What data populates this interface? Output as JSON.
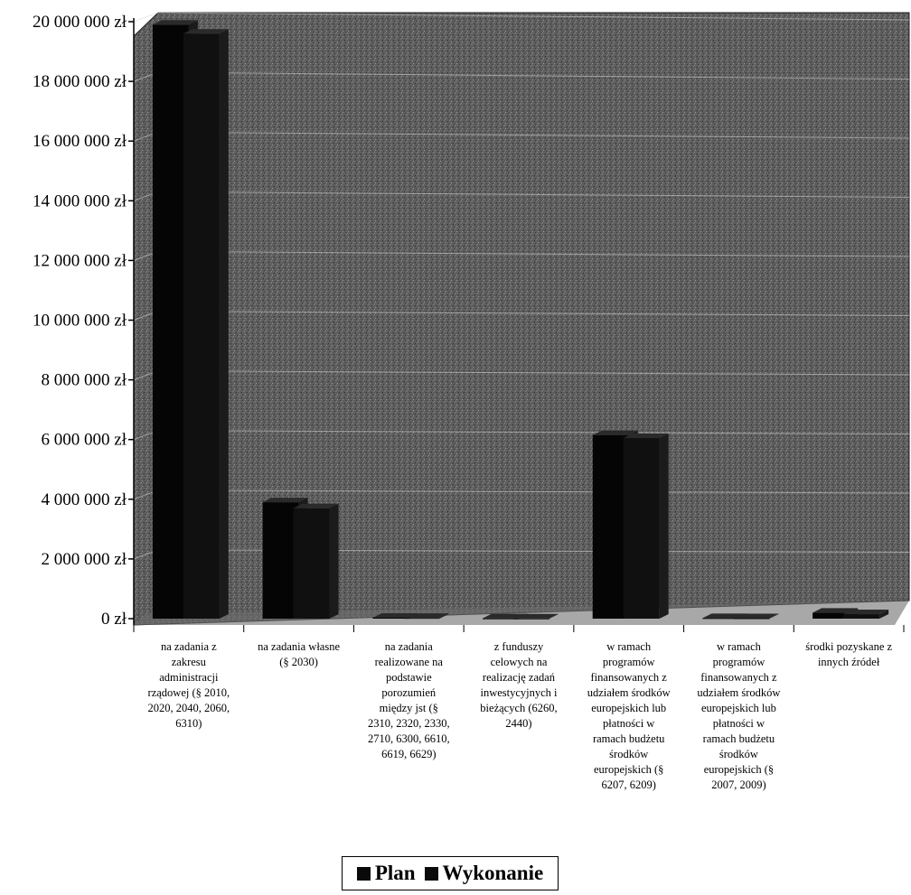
{
  "chart_data": {
    "type": "bar",
    "ylim": [
      0,
      20000000
    ],
    "yticks": [
      "0 zł",
      "2 000 000 zł",
      "4 000 000 zł",
      "6 000 000 zł",
      "8 000 000 zł",
      "10 000 000 zł",
      "12 000 000 zł",
      "14 000 000 zł",
      "16 000 000 zł",
      "18 000 000 zł",
      "20 000 000 zł"
    ],
    "grid": true,
    "legend_position": "bottom",
    "categories": [
      "na zadania z\nzakresu\nadministracji\nrządowej (§ 2010,\n2020, 2040, 2060,\n6310)",
      "na zadania własne\n(§ 2030)",
      "na zadania\nrealizowane na\npodstawie\nporozumień\nmiędzy jst (§\n2310, 2320, 2330,\n2710, 6300, 6610,\n6619, 6629)",
      "z funduszy\ncelowych na\nrealizację zadań\ninwestycyjnych i\nbieżących (6260,\n2440)",
      "w ramach\nprogramów\nfinansowanych z\nudziałem środków\neuropejskich lub\npłatności w\nramach budżetu\nśrodków\neuropejskich (§\n6207, 6209)",
      "w ramach\nprogramów\nfinansowanych z\nudziałem środków\neuropejskich lub\npłatności w\nramach budżetu\nśrodków\neuropejskich (§\n2007, 2009)",
      "środki pozyskane z\ninnych źródeł"
    ],
    "series": [
      {
        "name": "Plan",
        "values": [
          19900000,
          3900000,
          30000,
          10000,
          6150000,
          20000,
          200000
        ]
      },
      {
        "name": "Wykonanie",
        "values": [
          19600000,
          3700000,
          25000,
          8000,
          6050000,
          15000,
          150000
        ]
      }
    ]
  }
}
